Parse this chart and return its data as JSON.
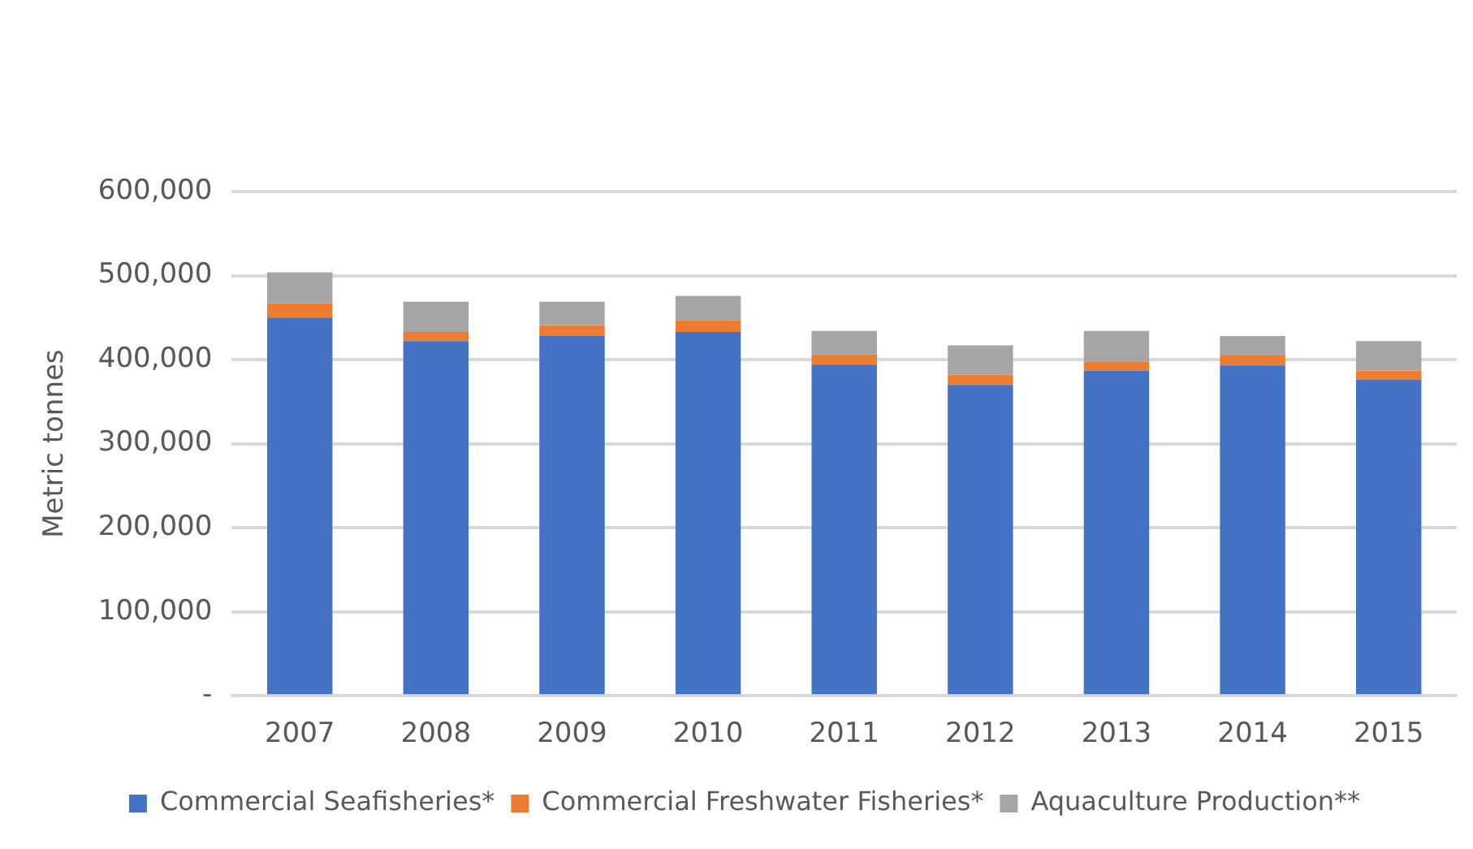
{
  "chart_data": {
    "type": "bar",
    "stacked": true,
    "ylabel": "Metric tonnes",
    "categories": [
      "2007",
      "2008",
      "2009",
      "2010",
      "2011",
      "2012",
      "2013",
      "2014",
      "2015"
    ],
    "series": [
      {
        "name": "Commercial Seafisheries*",
        "color": "#4472c4",
        "values": [
          450000,
          422000,
          428000,
          433000,
          394000,
          370000,
          387000,
          393000,
          376000
        ]
      },
      {
        "name": "Commercial Freshwater Fisheries*",
        "color": "#ed7d31",
        "values": [
          17000,
          11000,
          13000,
          14000,
          12000,
          12000,
          11000,
          12000,
          11000
        ]
      },
      {
        "name": "Aquaculture Production**",
        "color": "#a5a5a5",
        "values": [
          37000,
          36000,
          28000,
          29000,
          28000,
          35000,
          36000,
          23000,
          35000
        ]
      }
    ],
    "ylim": [
      0,
      600000
    ],
    "yticks": [
      {
        "value": 0,
        "label": "-"
      },
      {
        "value": 100000,
        "label": "100,000"
      },
      {
        "value": 200000,
        "label": "200,000"
      },
      {
        "value": 300000,
        "label": "300,000"
      },
      {
        "value": 400000,
        "label": "400,000"
      },
      {
        "value": 500000,
        "label": "500,000"
      },
      {
        "value": 600000,
        "label": "600,000"
      }
    ],
    "grid": "y",
    "legend": "bottom"
  }
}
